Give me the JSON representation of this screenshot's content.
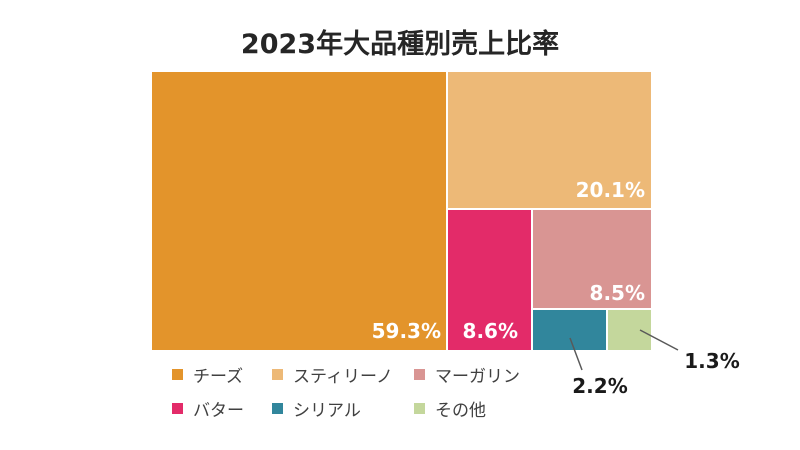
{
  "colors": {
    "cheese": "#e3942b",
    "stick": "#edb977",
    "margarine": "#d99593",
    "butter": "#e32b69",
    "cereal": "#31869c",
    "other": "#c4d79c"
  },
  "chart_data": {
    "type": "treemap",
    "title": "2023年大品種別売上比率",
    "values": [
      {
        "name": "チーズ",
        "value": 59.3,
        "label": "59.3%"
      },
      {
        "name": "スティリーノ",
        "value": 20.1,
        "label": "20.1%"
      },
      {
        "name": "マーガリン",
        "value": 8.5,
        "label": "8.5%"
      },
      {
        "name": "バター",
        "value": 8.6,
        "label": "8.6%"
      },
      {
        "name": "シリアル",
        "value": 2.2,
        "label": "2.2%"
      },
      {
        "name": "その他",
        "value": 1.3,
        "label": "1.3%"
      }
    ],
    "legend": [
      {
        "key": "cheese",
        "label": "チーズ"
      },
      {
        "key": "stick",
        "label": "スティリーノ"
      },
      {
        "key": "margarine",
        "label": "マーガリン"
      },
      {
        "key": "butter",
        "label": "バター"
      },
      {
        "key": "cereal",
        "label": "シリアル"
      },
      {
        "key": "other",
        "label": "その他"
      }
    ],
    "legend_position": "bottom"
  }
}
